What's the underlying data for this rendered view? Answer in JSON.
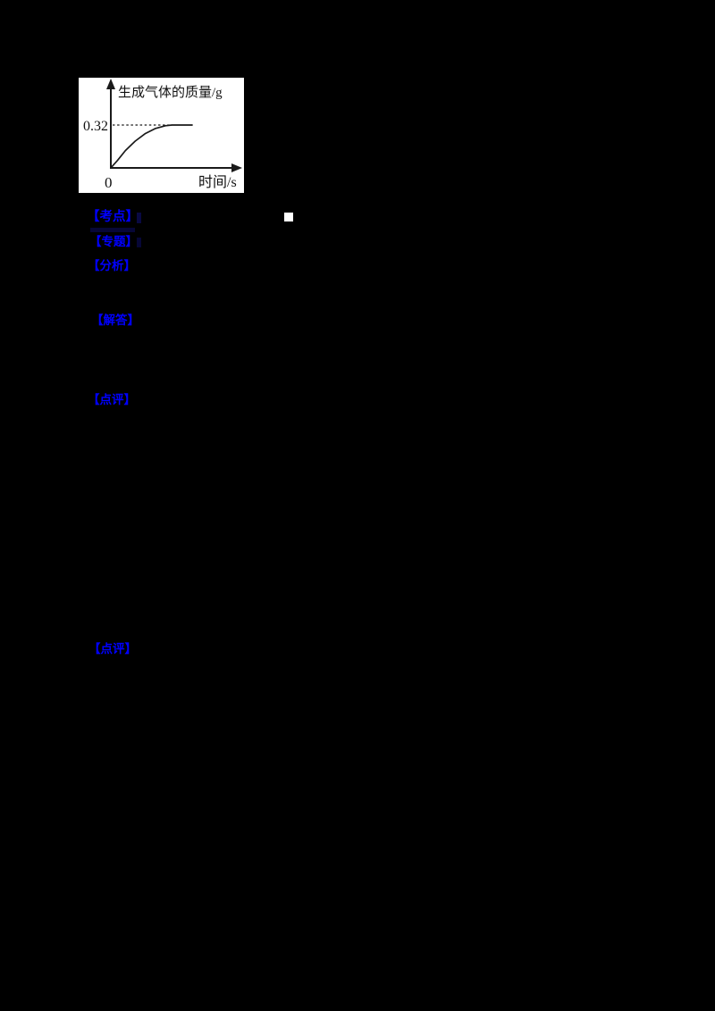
{
  "page": {
    "background": "#000000"
  },
  "figure": {
    "background": "#ffffff",
    "y_axis_label": "生成气体的质量/g",
    "x_axis_label": "时间/s",
    "origin_label": "0",
    "reference_value": "0.32"
  },
  "chart_data": {
    "type": "line",
    "title": "",
    "xlabel": "时间/s",
    "ylabel": "生成气体的质量/g",
    "ylim": [
      0,
      0.4
    ],
    "xlim": [
      0,
      1
    ],
    "grid": false,
    "axis_arrows": true,
    "reference_line": {
      "y": 0.32,
      "style": "dashed"
    },
    "annotations": [
      "0.32",
      "0"
    ],
    "series": [
      {
        "name": "生成气体的质量/g",
        "x": [
          0,
          0.08,
          0.18,
          0.3,
          0.42,
          0.55,
          0.67,
          0.75,
          1.0
        ],
        "y": [
          0,
          0.055,
          0.13,
          0.2,
          0.255,
          0.295,
          0.315,
          0.32,
          0.32
        ]
      }
    ]
  },
  "answer_sections": {
    "label_color": "#0000ff",
    "items": [
      {
        "label": "【考点】"
      },
      {
        "label": "【专题】"
      },
      {
        "label": "【分析】"
      },
      {
        "label": "【解答】"
      },
      {
        "label": "【点评】"
      },
      {
        "label": "【点评】"
      }
    ]
  },
  "marker": {
    "name": "white-square",
    "color": "#ffffff"
  }
}
